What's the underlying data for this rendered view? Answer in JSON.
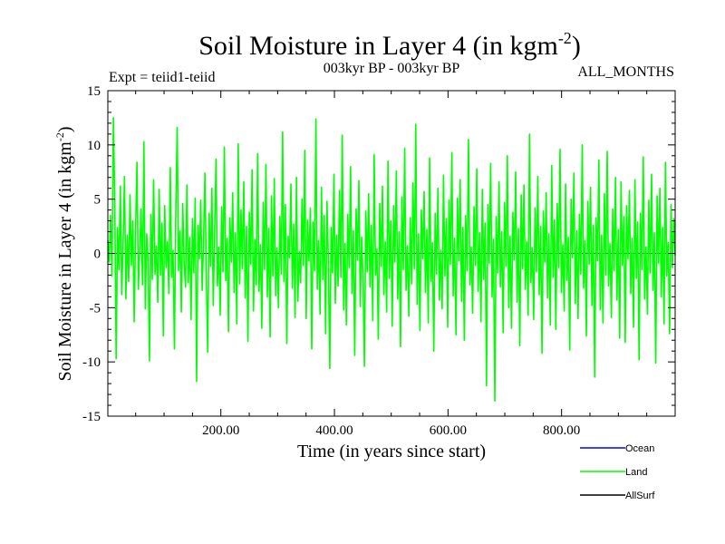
{
  "title": {
    "text": "Soil Moisture in Layer 4 (in kgm",
    "sup": "-2",
    "close": ")"
  },
  "subtitle_left": "Expt = teiid1-teiid",
  "subtitle_center": "003kyr BP - 003kyr BP",
  "subtitle_right": "ALL_MONTHS",
  "chart_data": {
    "type": "line",
    "xlabel": "Time (in years since start)",
    "ylabel": {
      "text": "Soil Moisture in Layer 4 (in kgm",
      "sup": "-2",
      "close": ")"
    },
    "xlim": [
      1,
      1000
    ],
    "ylim": [
      -15,
      15
    ],
    "x_ticks": [
      200,
      400,
      600,
      800
    ],
    "x_tick_labels": [
      "200.00",
      "400.00",
      "600.00",
      "800.00"
    ],
    "y_ticks": [
      15,
      10,
      5,
      0,
      -5,
      -10,
      -15
    ],
    "y_tick_labels": [
      "15",
      "10",
      "5",
      "0",
      "-5",
      "-10",
      "-15"
    ],
    "series": [
      {
        "name": "Ocean",
        "color": "#0000ff",
        "values": []
      },
      {
        "name": "Land",
        "color": "#00ff00",
        "values": [
          1.2,
          -0.8,
          3.5,
          -2.1,
          12.5,
          4.8,
          -9.7,
          2.4,
          -1.5,
          6.2,
          -3.8,
          0.9,
          7.1,
          -4.2,
          1.7,
          -2.6,
          5.4,
          -1.1,
          3.0,
          -6.3,
          2.2,
          8.4,
          -3.3,
          0.4,
          4.1,
          -2.9,
          10.3,
          -5.1,
          1.8,
          -0.6,
          -9.9,
          3.6,
          -2.4,
          6.8,
          -1.9,
          0.7,
          -4.5,
          5.9,
          -2.0,
          2.8,
          -7.6,
          4.4,
          -1.3,
          1.1,
          -3.7,
          7.9,
          -2.2,
          0.3,
          -8.8,
          3.9,
          11.6,
          -1.6,
          2.1,
          -5.4,
          4.6,
          -0.9,
          -3.1,
          6.3,
          -2.7,
          1.5,
          -6.1,
          3.2,
          -1.8,
          5.1,
          -11.8,
          2.6,
          -0.5,
          4.9,
          -3.4,
          1.0,
          7.4,
          -2.3,
          -9.1,
          3.7,
          -1.2,
          6.0,
          -4.8,
          2.0,
          8.7,
          -3.0,
          0.6,
          -5.7,
          4.3,
          -1.7,
          9.8,
          -2.5,
          1.4,
          -7.2,
          3.3,
          -0.8,
          5.6,
          -3.6,
          1.9,
          -6.5,
          10.1,
          -2.8,
          4.0,
          -1.4,
          6.6,
          -4.1,
          2.5,
          -8.1,
          3.8,
          -1.0,
          7.7,
          -5.3,
          1.3,
          -2.9,
          9.2,
          -3.5,
          0.8,
          -6.9,
          4.7,
          -1.5,
          8.2,
          -4.0,
          2.3,
          -7.7,
          5.3,
          -2.1,
          6.9,
          -3.9,
          0.5,
          -5.0,
          3.4,
          -1.9,
          11.2,
          -2.6,
          4.5,
          -8.3,
          1.6,
          -0.4,
          6.4,
          -3.2,
          2.7,
          -5.9,
          7.0,
          -4.4,
          0.2,
          -2.7,
          5.0,
          -1.1,
          9.5,
          -6.0,
          3.1,
          -0.7,
          4.2,
          -8.8,
          2.9,
          -1.6,
          12.4,
          -3.3,
          1.2,
          -5.6,
          6.1,
          -2.4,
          3.5,
          -7.4,
          4.8,
          -0.9,
          -10.6,
          2.4,
          -1.8,
          7.3,
          -4.6,
          1.7,
          -3.0,
          5.8,
          -2.2,
          10.9,
          -5.2,
          0.9,
          -6.6,
          3.6,
          -1.3,
          8.0,
          -3.7,
          2.1,
          -9.4,
          4.1,
          -0.6,
          6.7,
          -4.9,
          1.5,
          -2.5,
          -10.4,
          3.9,
          -1.7,
          5.5,
          -3.1,
          2.6,
          -6.2,
          9.1,
          -2.0,
          0.4,
          -7.9,
          4.6,
          -1.2,
          6.2,
          -3.8,
          1.1,
          -5.4,
          8.5,
          -2.3,
          3.0,
          -6.7,
          4.4,
          -0.8,
          7.6,
          -4.2,
          2.0,
          -8.6,
          5.2,
          -1.5,
          9.7,
          -3.4,
          0.7,
          -5.8,
          3.3,
          -2.8,
          6.5,
          -1.4,
          11.9,
          -4.7,
          1.8,
          -7.1,
          4.0,
          -0.5,
          5.7,
          -3.6,
          2.2,
          -6.4,
          8.8,
          -2.6,
          1.0,
          -9.0,
          3.7,
          -1.9,
          6.0,
          -4.3,
          0.3,
          -5.1,
          7.2,
          -2.1,
          3.2,
          -6.8,
          4.9,
          -1.0,
          9.3,
          -3.9,
          1.4,
          -7.5,
          5.1,
          -0.7,
          6.8,
          -4.4,
          2.4,
          -8.0,
          3.5,
          -1.6,
          10.5,
          -2.9,
          0.6,
          -5.5,
          4.3,
          -1.1,
          7.8,
          -3.5,
          1.9,
          -6.3,
          5.9,
          -2.4,
          2.8,
          -12.2,
          4.5,
          -0.9,
          8.3,
          -4.0,
          1.3,
          -13.6,
          3.4,
          -1.8,
          6.6,
          -3.1,
          2.0,
          -7.3,
          4.7,
          -1.2,
          9.0,
          -5.0,
          1.6,
          -6.9,
          3.8,
          -0.6,
          7.5,
          -4.5,
          2.3,
          -8.5,
          5.4,
          -1.4,
          6.3,
          -3.3,
          1.1,
          -5.7,
          11.0,
          -2.7,
          0.5,
          -6.1,
          4.2,
          -1.7,
          7.1,
          -3.8,
          2.5,
          -9.2,
          3.9,
          -0.8,
          5.6,
          -4.1,
          1.8,
          -6.6,
          8.1,
          -2.2,
          3.1,
          -7.0,
          4.6,
          -1.3,
          9.6,
          -3.6,
          0.8,
          -5.3,
          6.4,
          -2.5,
          1.5,
          -8.9,
          5.0,
          -0.4,
          7.4,
          -4.6,
          2.1,
          -6.0,
          3.6,
          -1.9,
          10.0,
          -3.2,
          1.2,
          -7.6,
          4.8,
          -1.0,
          6.1,
          -4.8,
          2.6,
          -11.4,
          3.3,
          -0.7,
          8.6,
          -5.2,
          1.7,
          -6.4,
          5.5,
          -2.0,
          9.4,
          -3.0,
          0.9,
          -5.9,
          4.1,
          -1.6,
          7.0,
          -4.3,
          2.2,
          -7.8,
          6.6,
          -1.1,
          3.4,
          -8.2,
          4.4,
          -0.5,
          5.8,
          -3.7,
          1.4,
          -6.8,
          6.8,
          -2.3,
          2.9,
          -9.8,
          3.7,
          -1.5,
          8.9,
          -4.2,
          0.6,
          -5.6,
          4.9,
          -1.8,
          7.3,
          -3.4,
          1.9,
          -10.1,
          5.3,
          -0.9,
          6.0,
          -4.0,
          2.4,
          -6.5,
          8.4,
          -2.1,
          1.0,
          -7.4,
          4.5,
          -1.3,
          3.2,
          -0.2
        ]
      },
      {
        "name": "AllSurf",
        "color": "#000000",
        "values": []
      }
    ],
    "grid": false,
    "legend_position": "bottom-right"
  }
}
